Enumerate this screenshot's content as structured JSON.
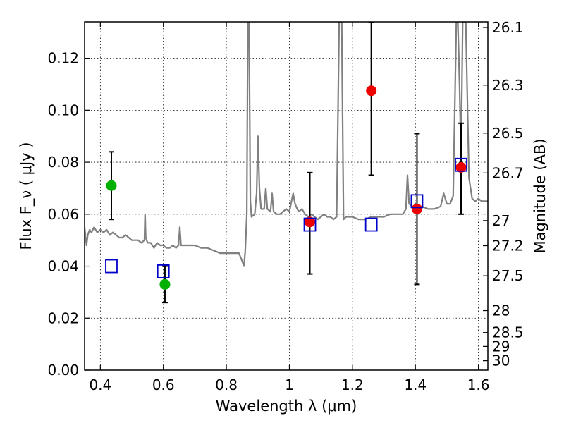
{
  "chart_data": {
    "type": "scatter",
    "xlabel": "Wavelength  λ (μm)",
    "ylabel": "Flux  F_ν  ( μJy )",
    "y2label": "Magnitude (AB)",
    "xlim": [
      0.35,
      1.63
    ],
    "ylim": [
      0.0,
      0.134
    ],
    "grid": true,
    "x_ticks": [
      {
        "v": 0.4,
        "t": "0.4"
      },
      {
        "v": 0.6,
        "t": "0.6"
      },
      {
        "v": 0.8,
        "t": "0.8"
      },
      {
        "v": 1.0,
        "t": "1"
      },
      {
        "v": 1.2,
        "t": "1.2"
      },
      {
        "v": 1.4,
        "t": "1.4"
      },
      {
        "v": 1.6,
        "t": "1.6"
      }
    ],
    "y_ticks": [
      {
        "v": 0.0,
        "t": "0.00"
      },
      {
        "v": 0.02,
        "t": "0.02"
      },
      {
        "v": 0.04,
        "t": "0.04"
      },
      {
        "v": 0.06,
        "t": "0.06"
      },
      {
        "v": 0.08,
        "t": "0.08"
      },
      {
        "v": 0.1,
        "t": "0.10"
      },
      {
        "v": 0.12,
        "t": "0.12"
      }
    ],
    "y2_ticks": [
      {
        "mag": 26.1,
        "t": "26.1"
      },
      {
        "mag": 26.3,
        "t": "26.3"
      },
      {
        "mag": 26.5,
        "t": "26.5"
      },
      {
        "mag": 26.7,
        "t": "26.7"
      },
      {
        "mag": 27.0,
        "t": "27"
      },
      {
        "mag": 27.2,
        "t": "27.2"
      },
      {
        "mag": 27.5,
        "t": "27.5"
      },
      {
        "mag": 28.0,
        "t": "28"
      },
      {
        "mag": 28.5,
        "t": "28.5"
      },
      {
        "mag": 29.0,
        "t": "29"
      },
      {
        "mag": 30.0,
        "t": "30"
      }
    ],
    "series": [
      {
        "kind": "line",
        "color": "#808080",
        "points": [
          [
            0.35,
            0.055
          ],
          [
            0.356,
            0.048
          ],
          [
            0.36,
            0.052
          ],
          [
            0.366,
            0.054
          ],
          [
            0.372,
            0.053
          ],
          [
            0.38,
            0.055
          ],
          [
            0.39,
            0.053
          ],
          [
            0.4,
            0.054
          ],
          [
            0.41,
            0.053
          ],
          [
            0.42,
            0.054
          ],
          [
            0.43,
            0.052
          ],
          [
            0.44,
            0.053
          ],
          [
            0.45,
            0.052
          ],
          [
            0.46,
            0.051
          ],
          [
            0.47,
            0.051
          ],
          [
            0.48,
            0.052
          ],
          [
            0.49,
            0.051
          ],
          [
            0.5,
            0.05
          ],
          [
            0.51,
            0.05
          ],
          [
            0.52,
            0.05
          ],
          [
            0.53,
            0.049
          ],
          [
            0.54,
            0.05
          ],
          [
            0.542,
            0.06
          ],
          [
            0.544,
            0.051
          ],
          [
            0.55,
            0.049
          ],
          [
            0.56,
            0.049
          ],
          [
            0.57,
            0.047
          ],
          [
            0.58,
            0.049
          ],
          [
            0.59,
            0.048
          ],
          [
            0.6,
            0.048
          ],
          [
            0.61,
            0.047
          ],
          [
            0.62,
            0.047
          ],
          [
            0.63,
            0.048
          ],
          [
            0.64,
            0.047
          ],
          [
            0.648,
            0.048
          ],
          [
            0.652,
            0.055
          ],
          [
            0.656,
            0.048
          ],
          [
            0.66,
            0.048
          ],
          [
            0.68,
            0.048
          ],
          [
            0.7,
            0.048
          ],
          [
            0.72,
            0.047
          ],
          [
            0.74,
            0.047
          ],
          [
            0.76,
            0.046
          ],
          [
            0.78,
            0.045
          ],
          [
            0.8,
            0.045
          ],
          [
            0.82,
            0.045
          ],
          [
            0.84,
            0.045
          ],
          [
            0.85,
            0.042
          ],
          [
            0.856,
            0.04
          ],
          [
            0.86,
            0.046
          ],
          [
            0.865,
            0.06
          ],
          [
            0.868,
            0.134
          ],
          [
            0.872,
            0.134
          ],
          [
            0.876,
            0.065
          ],
          [
            0.88,
            0.059
          ],
          [
            0.89,
            0.06
          ],
          [
            0.896,
            0.068
          ],
          [
            0.9,
            0.09
          ],
          [
            0.905,
            0.07
          ],
          [
            0.91,
            0.062
          ],
          [
            0.92,
            0.062
          ],
          [
            0.925,
            0.07
          ],
          [
            0.93,
            0.062
          ],
          [
            0.94,
            0.061
          ],
          [
            0.945,
            0.068
          ],
          [
            0.95,
            0.061
          ],
          [
            0.96,
            0.06
          ],
          [
            0.97,
            0.06
          ],
          [
            0.98,
            0.061
          ],
          [
            0.99,
            0.062
          ],
          [
            1.0,
            0.061
          ],
          [
            1.005,
            0.064
          ],
          [
            1.012,
            0.068
          ],
          [
            1.018,
            0.064
          ],
          [
            1.025,
            0.062
          ],
          [
            1.03,
            0.061
          ],
          [
            1.04,
            0.062
          ],
          [
            1.05,
            0.06
          ],
          [
            1.06,
            0.059
          ],
          [
            1.07,
            0.06
          ],
          [
            1.08,
            0.059
          ],
          [
            1.09,
            0.058
          ],
          [
            1.1,
            0.059
          ],
          [
            1.11,
            0.06
          ],
          [
            1.12,
            0.059
          ],
          [
            1.13,
            0.059
          ],
          [
            1.14,
            0.058
          ],
          [
            1.15,
            0.059
          ],
          [
            1.158,
            0.134
          ],
          [
            1.162,
            0.134
          ],
          [
            1.166,
            0.134
          ],
          [
            1.172,
            0.058
          ],
          [
            1.18,
            0.059
          ],
          [
            1.2,
            0.059
          ],
          [
            1.22,
            0.058
          ],
          [
            1.24,
            0.058
          ],
          [
            1.26,
            0.059
          ],
          [
            1.28,
            0.059
          ],
          [
            1.3,
            0.059
          ],
          [
            1.32,
            0.06
          ],
          [
            1.34,
            0.06
          ],
          [
            1.36,
            0.06
          ],
          [
            1.37,
            0.062
          ],
          [
            1.375,
            0.075
          ],
          [
            1.38,
            0.064
          ],
          [
            1.39,
            0.063
          ],
          [
            1.4,
            0.062
          ],
          [
            1.42,
            0.063
          ],
          [
            1.44,
            0.062
          ],
          [
            1.46,
            0.062
          ],
          [
            1.48,
            0.063
          ],
          [
            1.49,
            0.068
          ],
          [
            1.5,
            0.064
          ],
          [
            1.51,
            0.064
          ],
          [
            1.52,
            0.067
          ],
          [
            1.53,
            0.134
          ],
          [
            1.535,
            0.134
          ],
          [
            1.54,
            0.11
          ],
          [
            1.545,
            0.081
          ],
          [
            1.55,
            0.134
          ],
          [
            1.56,
            0.134
          ],
          [
            1.57,
            0.074
          ],
          [
            1.58,
            0.066
          ],
          [
            1.59,
            0.065
          ],
          [
            1.6,
            0.066
          ],
          [
            1.61,
            0.065
          ],
          [
            1.62,
            0.065
          ],
          [
            1.63,
            0.065
          ]
        ]
      },
      {
        "kind": "markers",
        "shape": "circle",
        "color": "#00b000",
        "points": [
          {
            "x": 0.435,
            "y": 0.071,
            "ylo": 0.058,
            "yhi": 0.084
          },
          {
            "x": 0.605,
            "y": 0.033,
            "ylo": 0.026,
            "yhi": 0.04
          }
        ]
      },
      {
        "kind": "markers",
        "shape": "circle",
        "color": "#ee0000",
        "points": [
          {
            "x": 1.065,
            "y": 0.057,
            "ylo": 0.037,
            "yhi": 0.076
          },
          {
            "x": 1.26,
            "y": 0.1075,
            "ylo": 0.075,
            "yhi": 0.134
          },
          {
            "x": 1.405,
            "y": 0.062,
            "ylo": 0.033,
            "yhi": 0.091
          },
          {
            "x": 1.545,
            "y": 0.078,
            "ylo": 0.06,
            "yhi": 0.095
          }
        ]
      },
      {
        "kind": "markers",
        "shape": "open-square",
        "color": "#0000cc",
        "points": [
          {
            "x": 0.435,
            "y": 0.04
          },
          {
            "x": 0.6,
            "y": 0.038
          },
          {
            "x": 1.065,
            "y": 0.056
          },
          {
            "x": 1.26,
            "y": 0.056
          },
          {
            "x": 1.405,
            "y": 0.065
          },
          {
            "x": 1.545,
            "y": 0.079
          }
        ]
      }
    ]
  }
}
